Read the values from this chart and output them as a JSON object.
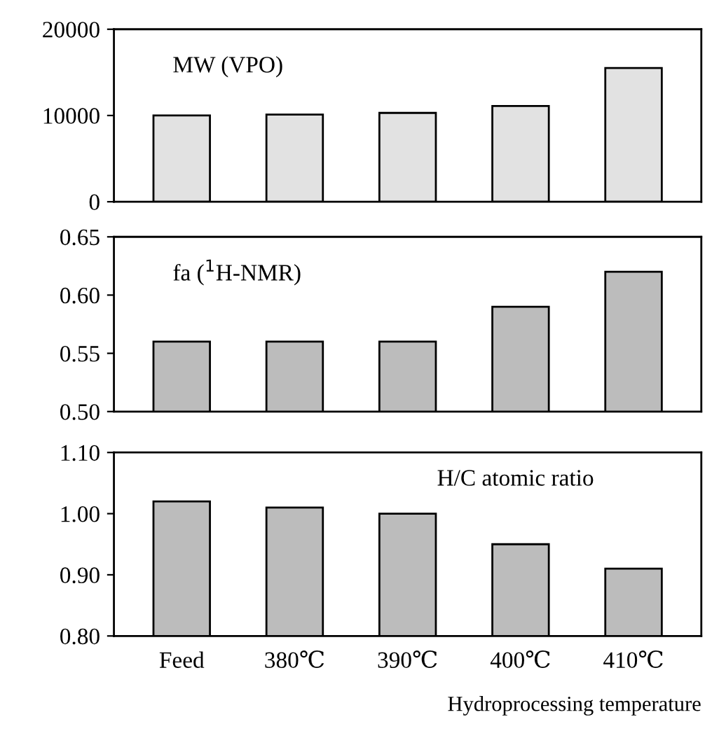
{
  "chart_data": [
    {
      "type": "bar",
      "categories": [
        null,
        null,
        null,
        null,
        null
      ],
      "values": [
        10000,
        10100,
        10300,
        11100,
        15500
      ],
      "color": "#e2e2e2",
      "ylim": [
        0,
        20000
      ],
      "yticks": [
        0,
        10000,
        20000
      ],
      "annotations": [
        "MW (VPO)"
      ],
      "tick_labels": "y",
      "grid": false
    },
    {
      "type": "bar",
      "categories": [
        null,
        null,
        null,
        null,
        null
      ],
      "values": [
        0.56,
        0.56,
        0.56,
        0.59,
        0.62
      ],
      "color": "#bcbcbc",
      "ylim": [
        0.5,
        0.65
      ],
      "yticks": [
        {
          "value": 0.5,
          "label": "0.50"
        },
        {
          "value": 0.55,
          "label": "0.55"
        },
        {
          "value": 0.6,
          "label": "0.60"
        },
        {
          "value": 0.65,
          "label": "0.65"
        }
      ],
      "annotations": [
        "fa ($^{1}$H-NMR)"
      ],
      "tick_labels": "y",
      "grid": false
    },
    {
      "type": "bar",
      "categories": [
        "Feed",
        "380℃",
        "390℃",
        "400℃",
        "410℃"
      ],
      "values": [
        1.02,
        1.01,
        1.0,
        0.95,
        0.91
      ],
      "color": "#bcbcbc",
      "ylim": [
        0.8,
        1.1
      ],
      "yticks": [
        {
          "value": 0.8,
          "label": "0.80"
        },
        {
          "value": 0.9,
          "label": "0.90"
        },
        {
          "value": 1.0,
          "label": "1.00"
        },
        {
          "value": 1.1,
          "label": "1.10"
        }
      ],
      "annotations": [
        "H/C atomic ratio"
      ],
      "xlabel": "Hydroprocessing temperature",
      "grid": false
    }
  ]
}
